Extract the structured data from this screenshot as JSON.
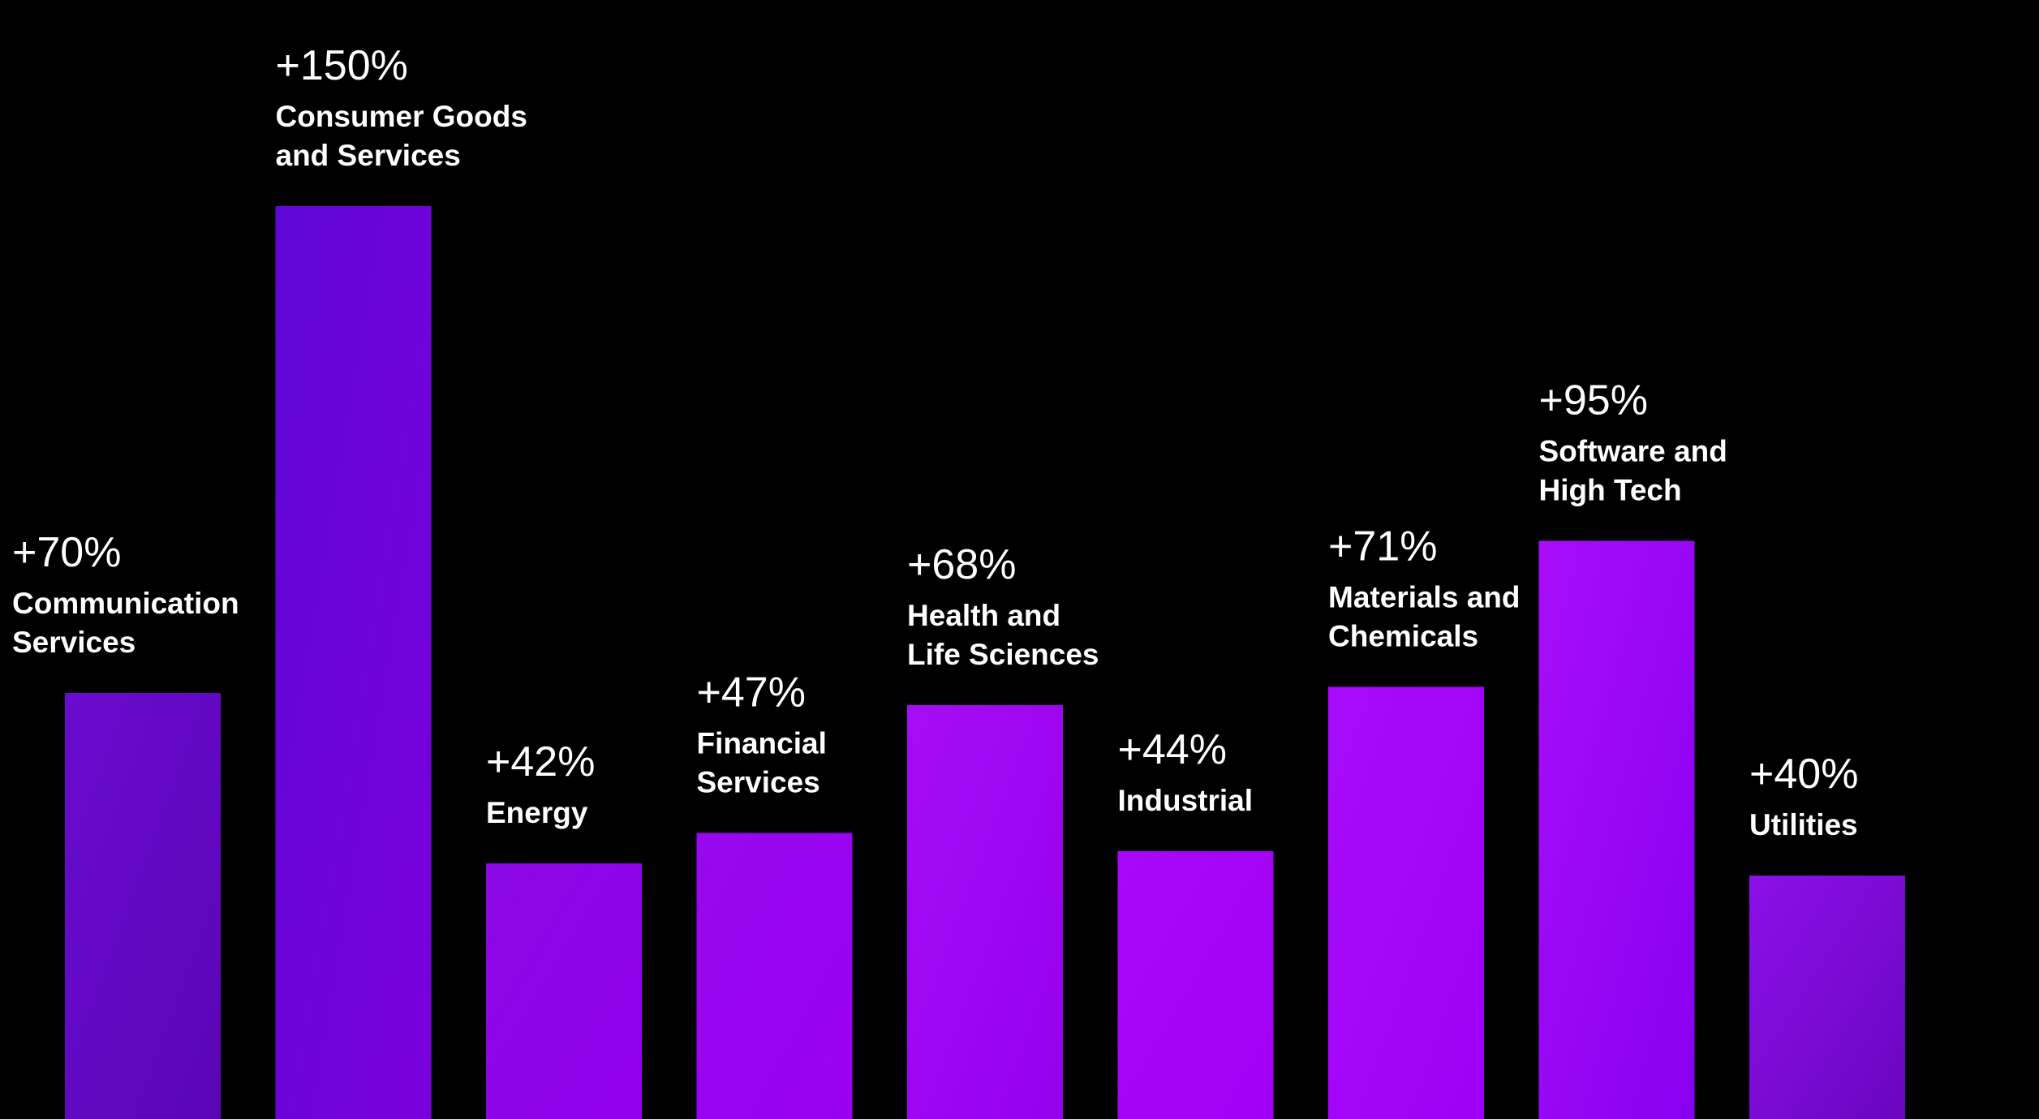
{
  "chart_data": {
    "type": "bar",
    "title": "",
    "xlabel": "",
    "ylabel": "",
    "categories": [
      [
        "Communication",
        "Services"
      ],
      [
        "Consumer Goods",
        "and Services"
      ],
      [
        "Energy"
      ],
      [
        "Financial",
        "Services"
      ],
      [
        "Health and",
        "Life Sciences"
      ],
      [
        "Industrial"
      ],
      [
        "Materials and",
        "Chemicals"
      ],
      [
        "Software and",
        "High Tech"
      ],
      [
        "Utilities"
      ]
    ],
    "values": [
      70,
      150,
      42,
      47,
      68,
      44,
      71,
      95,
      40
    ],
    "value_labels": [
      "+70%",
      "+150%",
      "+42%",
      "+47%",
      "+68%",
      "+44%",
      "+71%",
      "+95%",
      "+40%"
    ],
    "bar_colors": [
      [
        "#6a0bd0",
        "#5a05b5"
      ],
      [
        "#5f06d8",
        "#7a00dd"
      ],
      [
        "#8a08e6",
        "#9200ea"
      ],
      [
        "#9708ee",
        "#9a00f0"
      ],
      [
        "#a60cf5",
        "#9600ee"
      ],
      [
        "#a808f8",
        "#a000f5"
      ],
      [
        "#a70bfa",
        "#9e00f5"
      ],
      [
        "#a80dfa",
        "#8800f0"
      ],
      [
        "#8b10e8",
        "#6a05c0"
      ]
    ],
    "ylim": [
      0,
      176
    ],
    "grid": false,
    "legend": "none"
  }
}
